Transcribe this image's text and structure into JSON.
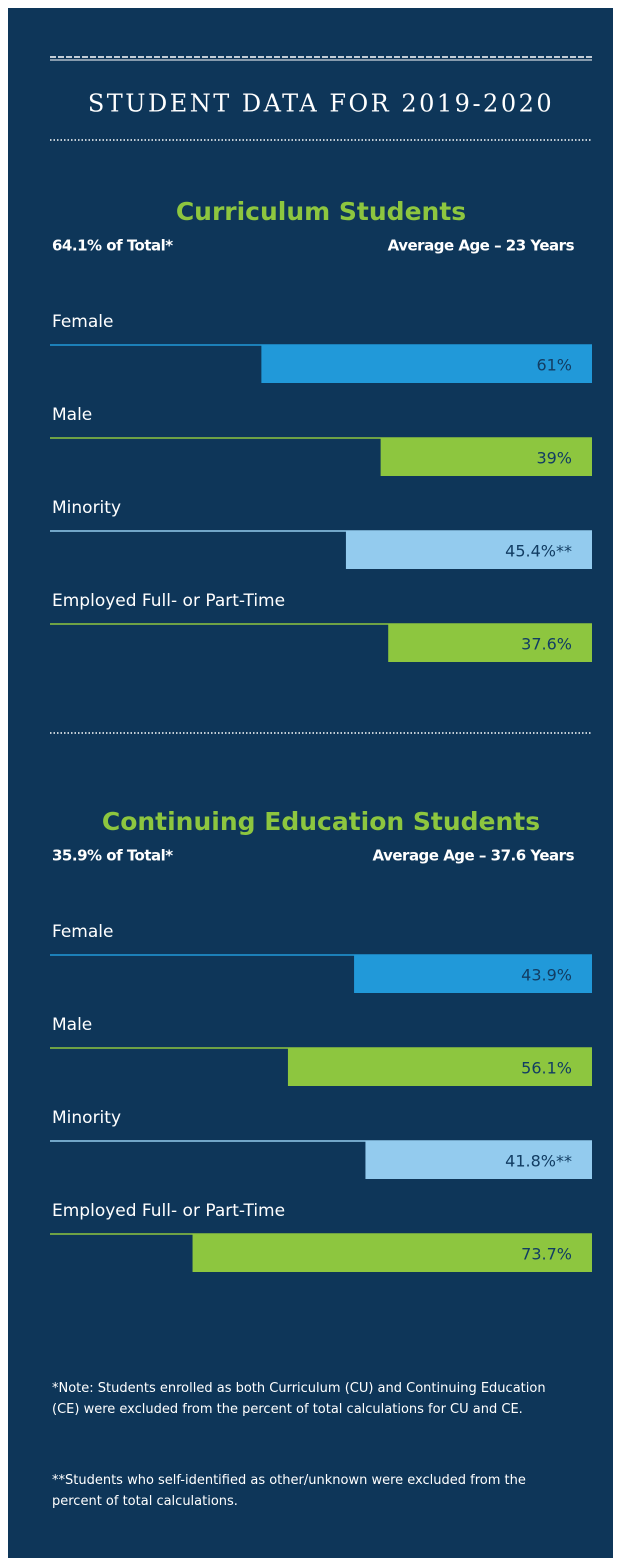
{
  "title": "STUDENT DATA FOR 2019-2020",
  "chart_data": [
    {
      "type": "bar",
      "orientation": "horizontal",
      "title": "Curriculum Students",
      "annotations": [
        "64.1% of Total*",
        "Average Age – 23 Years"
      ],
      "categories": [
        "Female",
        "Male",
        "Minority",
        "Employed Full- or Part-Time"
      ],
      "values": [
        61,
        39,
        45.4,
        37.6
      ],
      "value_labels": [
        "61%",
        "39%",
        "45.4%**",
        "37.6%"
      ],
      "colors": [
        "#2199d9",
        "#8dc63f",
        "#93cbee",
        "#8dc63f"
      ],
      "xlim": [
        0,
        100
      ]
    },
    {
      "type": "bar",
      "orientation": "horizontal",
      "title": "Continuing Education Students",
      "annotations": [
        "35.9% of Total*",
        "Average Age – 37.6 Years"
      ],
      "categories": [
        "Female",
        "Male",
        "Minority",
        "Employed Full- or Part-Time"
      ],
      "values": [
        43.9,
        56.1,
        41.8,
        73.7
      ],
      "value_labels": [
        "43.9%",
        "56.1%",
        "41.8%**",
        "73.7%"
      ],
      "colors": [
        "#2199d9",
        "#8dc63f",
        "#93cbee",
        "#8dc63f"
      ],
      "xlim": [
        0,
        100
      ]
    }
  ],
  "notes": [
    "*Note: Students enrolled as both Curriculum (CU) and Continuing Education (CE) were excluded from the percent of total calculations for CU and CE.",
    "**Students who self-identified as other/unknown were excluded from the percent of total calculations."
  ]
}
